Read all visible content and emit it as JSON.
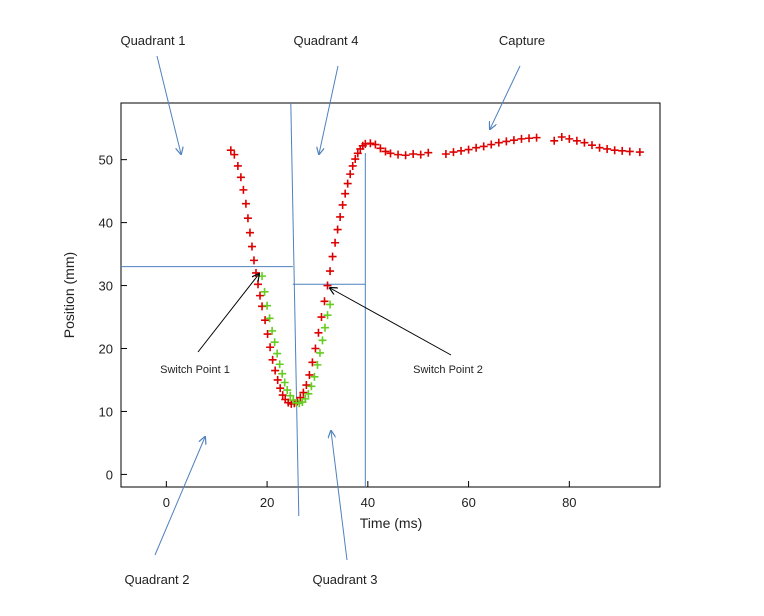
{
  "chart_data": {
    "type": "scatter",
    "xlabel": "Time (ms)",
    "ylabel": "Position (mm)",
    "xlim": [
      -9,
      98
    ],
    "ylim": [
      -2,
      59
    ],
    "x_ticks": [
      0,
      20,
      40,
      60,
      80
    ],
    "y_ticks": [
      0,
      10,
      20,
      30,
      40,
      50
    ],
    "grid": false,
    "legend": "none",
    "colors": {
      "red": "#dd0000",
      "green": "#66cc22",
      "guide": "#4f81bd",
      "arrow_black": "#000000"
    },
    "series": [
      {
        "marker": "plus",
        "color": "#dd0000",
        "x": [
          12.8,
          13.5,
          14.2,
          14.8,
          15.3,
          15.8,
          16.2,
          16.6,
          17.0,
          17.4,
          17.8,
          18.2,
          18.6,
          19.0,
          19.6,
          20.1,
          20.6,
          21.1,
          21.6,
          22.1,
          22.6,
          23.1,
          23.6,
          24.2,
          24.8,
          25.4,
          26.0,
          26.6,
          27.2,
          27.8,
          28.4,
          29.0,
          29.6,
          30.2,
          30.8,
          31.4,
          32.0,
          32.5,
          33.0,
          33.5,
          34.0,
          34.5,
          35.0,
          35.5,
          36.0,
          36.5,
          37.0,
          37.5,
          38.0,
          38.5,
          39.0,
          39.5,
          40.5,
          41.5,
          42.5,
          43.5,
          44.5,
          46.0,
          47.5,
          49.0,
          50.5,
          52.0,
          55.5,
          57.0,
          58.5,
          60.0,
          61.5,
          63.0,
          64.5,
          66.0,
          67.5,
          69.0,
          70.5,
          72.0,
          73.5,
          77.0,
          78.5,
          80.0,
          81.5,
          83.0,
          84.5,
          86.0,
          87.5,
          89.0,
          90.5,
          92.0,
          94.0
        ],
        "y": [
          51.5,
          50.8,
          49.0,
          47.2,
          45.2,
          43.0,
          40.7,
          38.4,
          36.2,
          34.0,
          32.0,
          30.2,
          28.4,
          26.7,
          24.5,
          22.3,
          20.2,
          18.2,
          16.5,
          15.0,
          13.7,
          12.6,
          11.9,
          11.4,
          11.2,
          11.3,
          11.6,
          12.2,
          13.0,
          14.2,
          15.8,
          17.8,
          20.0,
          22.5,
          25.0,
          27.5,
          30.0,
          32.3,
          34.6,
          36.8,
          38.9,
          40.9,
          42.8,
          44.6,
          46.2,
          47.7,
          49.0,
          50.1,
          51.0,
          51.7,
          52.2,
          52.5,
          52.6,
          52.4,
          51.8,
          51.3,
          51.0,
          50.8,
          50.7,
          50.9,
          50.8,
          51.1,
          50.9,
          51.2,
          51.4,
          51.6,
          51.9,
          52.1,
          52.4,
          52.7,
          52.9,
          53.1,
          53.3,
          53.4,
          53.5,
          53.0,
          53.6,
          53.3,
          53.0,
          52.7,
          52.3,
          51.9,
          51.7,
          51.5,
          51.4,
          51.3,
          51.2
        ]
      },
      {
        "marker": "plus",
        "color": "#66cc22",
        "x": [
          19.0,
          19.5,
          20.0,
          20.5,
          21.0,
          21.5,
          22.0,
          22.5,
          23.0,
          23.5,
          24.0,
          24.6,
          25.2,
          25.8,
          26.4,
          27.0,
          27.6,
          28.2,
          28.8,
          29.4,
          30.0,
          30.5,
          31.0,
          31.5,
          32.0,
          32.5
        ],
        "y": [
          31.5,
          29.0,
          26.8,
          24.8,
          22.8,
          21.0,
          19.2,
          17.5,
          16.0,
          14.6,
          13.4,
          12.5,
          11.8,
          11.4,
          11.3,
          11.5,
          12.0,
          12.8,
          14.0,
          15.5,
          17.4,
          19.3,
          21.3,
          23.3,
          25.3,
          27.0
        ]
      }
    ],
    "guides": {
      "vertical_x": [
        25.5,
        39.5
      ],
      "left_h_y": 33,
      "right_h_y": 30.2
    }
  },
  "annotations": {
    "quadrant1": "Quadrant 1",
    "quadrant4": "Quadrant 4",
    "capture": "Capture",
    "quadrant2": "Quadrant 2",
    "quadrant3": "Quadrant 3",
    "switch1": "Switch Point  1",
    "switch2": "Switch Point  2"
  }
}
